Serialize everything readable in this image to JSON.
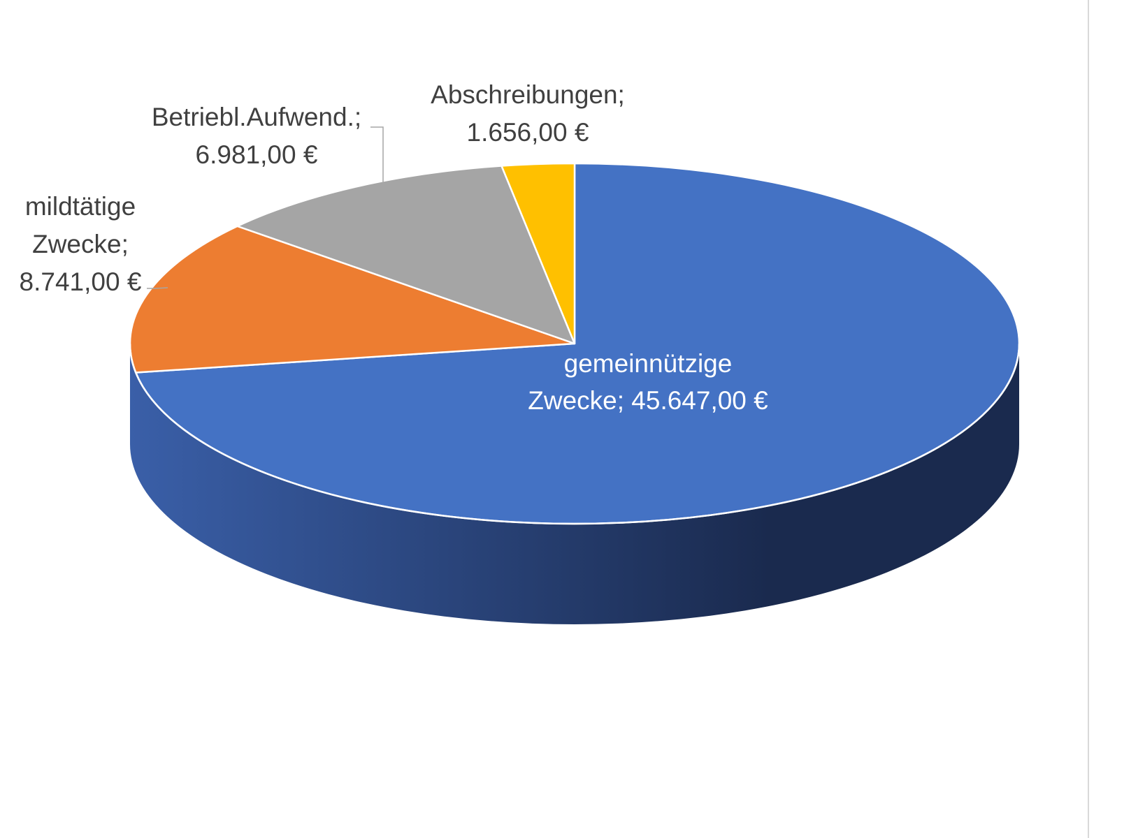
{
  "chart_data": {
    "type": "pie",
    "style": "3d",
    "title": "",
    "currency": "€",
    "slices": [
      {
        "name": "gemeinnützige Zwecke",
        "value": 45647.0,
        "color": "#4472c4",
        "label_lines": [
          "gemeinnützige",
          "Zwecke;  45.647,00 €"
        ]
      },
      {
        "name": "mildtätige Zwecke",
        "value": 8741.0,
        "color": "#ed7d31",
        "label_lines": [
          "mildtätige",
          "Zwecke;",
          "8.741,00 €"
        ]
      },
      {
        "name": "Betriebl.Aufwend.",
        "value": 6981.0,
        "color": "#a5a5a5",
        "label_lines": [
          "Betriebl.Aufwend.;",
          "6.981,00 €"
        ]
      },
      {
        "name": "Abschreibungen",
        "value": 1656.0,
        "color": "#ffc000",
        "label_lines": [
          "Abschreibungen;",
          "1.656,00 €"
        ]
      }
    ],
    "side_colors": {
      "light": "#3a5fa8",
      "dark": "#1a2a4e"
    },
    "leader_line_color": "#a6a6a6",
    "legend": "none"
  }
}
